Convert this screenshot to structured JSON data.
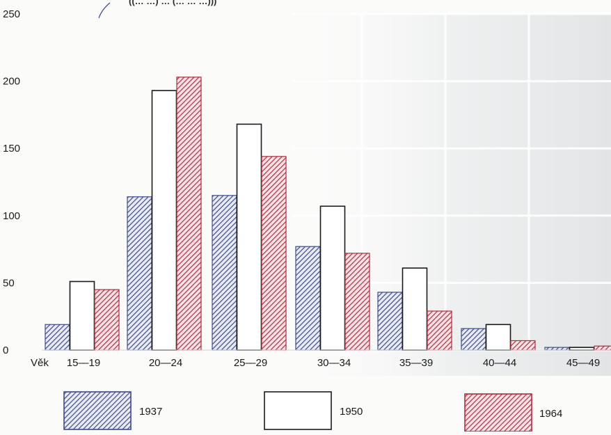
{
  "chart_data": {
    "type": "bar",
    "title_fragment": "((… …) … (… … …)))",
    "axis_prefix_label": "Věk",
    "categories": [
      "15—19",
      "20—24",
      "25—29",
      "30—34",
      "35—39",
      "40—44",
      "45—49"
    ],
    "series": [
      {
        "name": "1937",
        "values": [
          19,
          114,
          115,
          77,
          43,
          16,
          2
        ]
      },
      {
        "name": "1950",
        "values": [
          51,
          193,
          168,
          107,
          61,
          19,
          2
        ]
      },
      {
        "name": "1964",
        "values": [
          45,
          203,
          144,
          72,
          29,
          7,
          3
        ]
      }
    ],
    "ylim": [
      0,
      250
    ],
    "yticks": [
      "0",
      "50",
      "100",
      "150",
      "200",
      "250"
    ],
    "grid": true,
    "legend_position": "bottom",
    "colors": {
      "1937": "#3b4a8c",
      "1950": "#ffffff",
      "1964": "#b8283a"
    }
  }
}
